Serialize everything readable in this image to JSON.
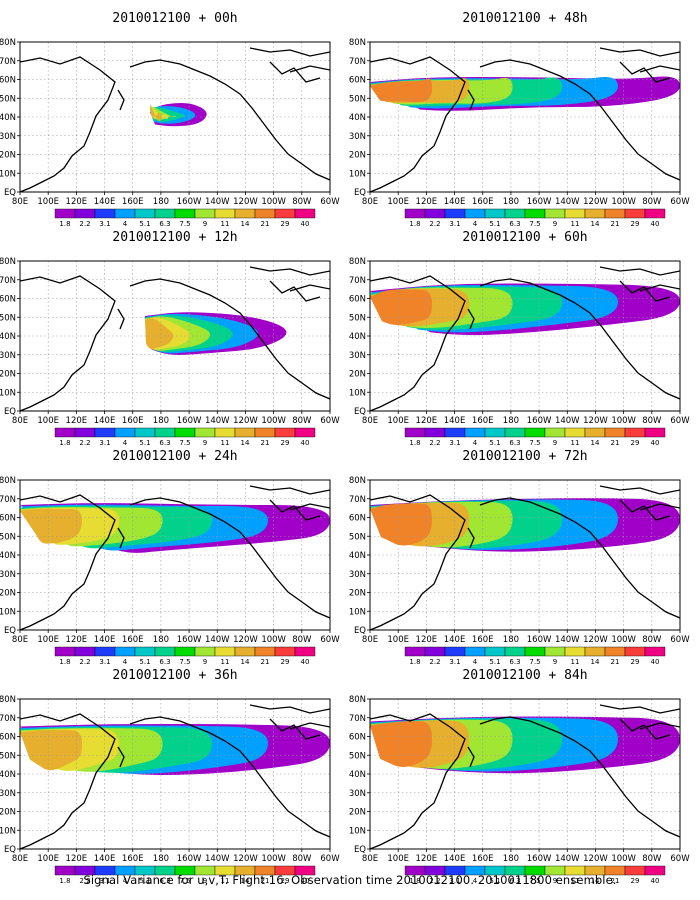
{
  "caption": "Signal Variance for u,v,T. Flight 16. Observation time 2010012100. 2010011800 ensemble.",
  "lon_labels": [
    "80E",
    "100E",
    "120E",
    "140E",
    "160E",
    "180",
    "160W",
    "140W",
    "120W",
    "100W",
    "80W",
    "60W"
  ],
  "lat_labels": [
    "80N",
    "70N",
    "60N",
    "50N",
    "40N",
    "30N",
    "20N",
    "10N",
    "EQ"
  ],
  "colorbar": {
    "levels": [
      "1.8",
      "2.2",
      "3.1",
      "4",
      "5.1",
      "6.3",
      "7.5",
      "9",
      "11",
      "14",
      "21",
      "29",
      "40"
    ],
    "colors": [
      "#a000c8",
      "#8200dc",
      "#1e3cff",
      "#00a0ff",
      "#00c8c8",
      "#00d28c",
      "#00dc00",
      "#a0e632",
      "#e6dc32",
      "#e6af2d",
      "#f08228",
      "#fa3c3c",
      "#f00082"
    ]
  },
  "panels": [
    {
      "title": "2010012100 + 00h"
    },
    {
      "title": "2010012100 + 48h"
    },
    {
      "title": "2010012100 + 12h"
    },
    {
      "title": "2010012100 + 60h"
    },
    {
      "title": "2010012100 + 24h"
    },
    {
      "title": "2010012100 + 72h"
    },
    {
      "title": "2010012100 + 36h"
    },
    {
      "title": "2010012100 + 84h"
    }
  ]
}
